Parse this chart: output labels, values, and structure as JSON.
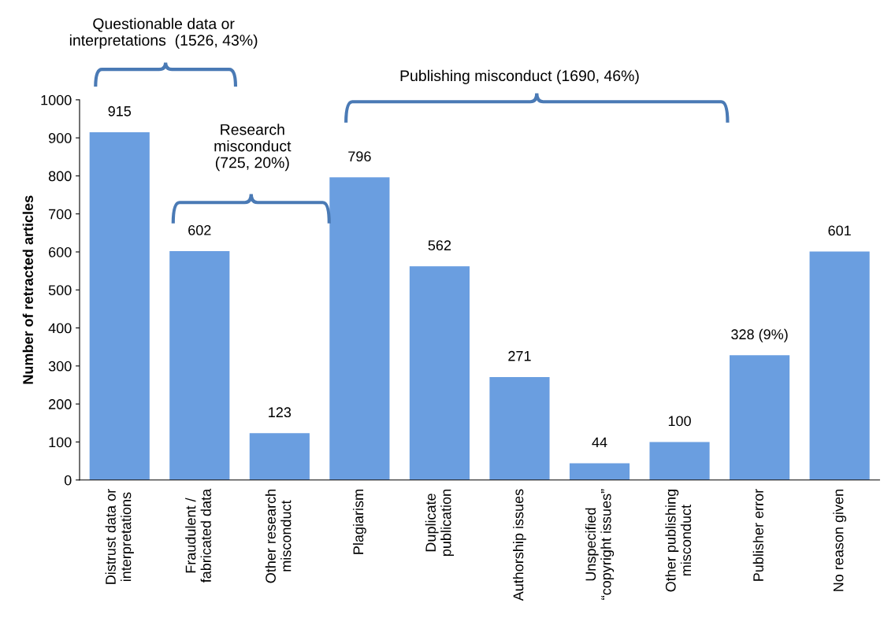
{
  "chart_data": {
    "type": "bar",
    "ylabel": "Number of retracted articles",
    "categories": [
      "Distrust data or\ninterpretations",
      "Fraudulent /\nfabricated data",
      "Other research\nmisconduct",
      "Plagiarism",
      "Duplicate\npublication",
      "Authorship issues",
      "Unspecified\n“copyright issues”",
      "Other publishing\nmisconduct",
      "Publisher error",
      "No reason given"
    ],
    "values": [
      915,
      602,
      123,
      796,
      562,
      271,
      44,
      100,
      328,
      601
    ],
    "value_labels": [
      "915",
      "602",
      "123",
      "796",
      "562",
      "271",
      "44",
      "100",
      "328 (9%)",
      "601"
    ],
    "color": "#6a9ee0",
    "ylim": [
      0,
      1000
    ],
    "yticks": [
      0,
      100,
      200,
      300,
      400,
      500,
      600,
      700,
      800,
      900,
      1000
    ],
    "grid": false,
    "legend": false,
    "annotations": [
      "Questionable data or\ninterpretations  (1526, 43%)",
      "Research\nmisconduct\n(725, 20%)",
      "Publishing misconduct (1690, 46%)"
    ]
  }
}
